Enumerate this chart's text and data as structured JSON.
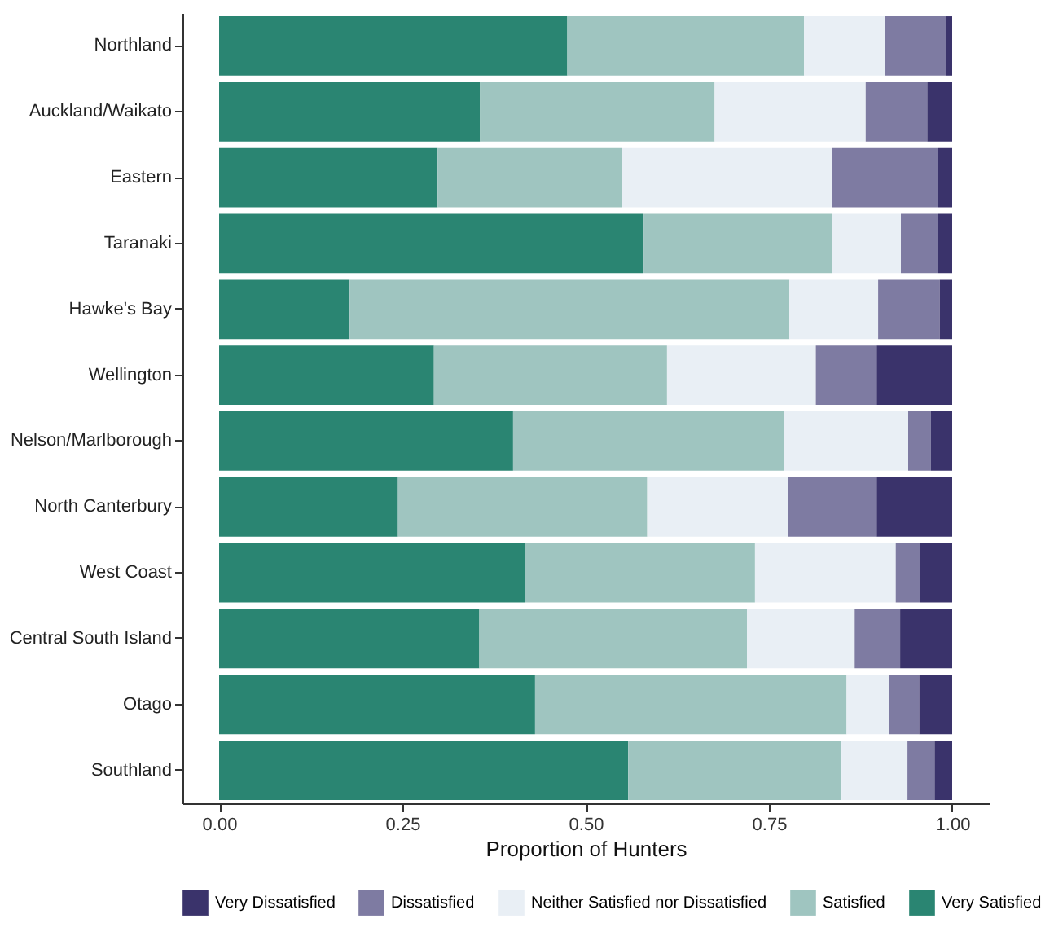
{
  "chart_data": {
    "type": "bar",
    "orientation": "horizontal",
    "stacked": true,
    "xlabel": "Proportion of Hunters",
    "legend": "bottom",
    "grid": false,
    "categories": [
      "Northland",
      "Auckland/Waikato",
      "Eastern",
      "Taranaki",
      "Hawke's Bay",
      "Wellington",
      "Nelson/Marlborough",
      "North Canterbury",
      "West Coast",
      "Central South Island",
      "Otago",
      "Southland"
    ],
    "xlim": [
      -0.05,
      1.05
    ],
    "xticks": [
      {
        "value": 0,
        "label": "0.00"
      },
      {
        "value": 0.25,
        "label": "0.25"
      },
      {
        "value": 0.5,
        "label": "0.50"
      },
      {
        "value": 0.75,
        "label": "0.75"
      },
      {
        "value": 1,
        "label": "1.00"
      }
    ],
    "series": [
      {
        "name": "Very Satisfied",
        "color": "#2a8572",
        "values": [
          0.475,
          0.356,
          0.298,
          0.579,
          0.178,
          0.293,
          0.401,
          0.244,
          0.417,
          0.355,
          0.431,
          0.558
        ]
      },
      {
        "name": "Satisfied",
        "color": "#9fc5c0",
        "values": [
          0.323,
          0.32,
          0.252,
          0.257,
          0.6,
          0.318,
          0.369,
          0.34,
          0.314,
          0.365,
          0.425,
          0.291
        ]
      },
      {
        "name": "Neither Satisfied nor Dissatisfied",
        "color": "#e9eff5",
        "values": [
          0.11,
          0.206,
          0.286,
          0.094,
          0.121,
          0.203,
          0.17,
          0.192,
          0.192,
          0.147,
          0.058,
          0.09
        ]
      },
      {
        "name": "Dissatisfied",
        "color": "#7e7ba2",
        "values": [
          0.084,
          0.084,
          0.144,
          0.051,
          0.084,
          0.083,
          0.031,
          0.121,
          0.033,
          0.062,
          0.041,
          0.037
        ]
      },
      {
        "name": "Very Dissatisfied",
        "color": "#3a336b",
        "values": [
          0.008,
          0.034,
          0.02,
          0.019,
          0.017,
          0.103,
          0.029,
          0.103,
          0.044,
          0.071,
          0.045,
          0.024
        ]
      }
    ]
  }
}
